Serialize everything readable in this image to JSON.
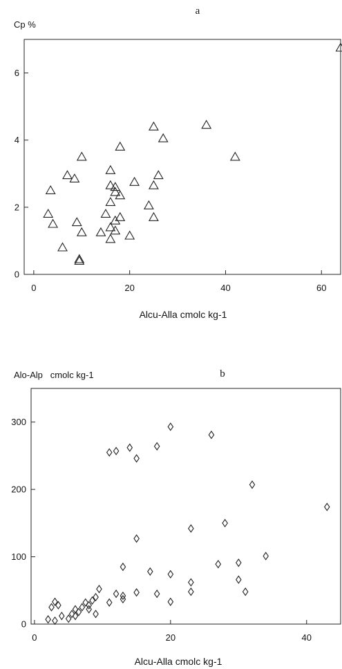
{
  "chart_data": [
    {
      "type": "scatter",
      "panel_label": "a",
      "ylabel": "Cp %",
      "xlabel": "Alcu-Alla cmolc kg-1",
      "xlim": [
        -2,
        64
      ],
      "ylim": [
        0,
        7
      ],
      "xticks": [
        0,
        20,
        40,
        60
      ],
      "yticks": [
        0,
        2,
        4,
        6
      ],
      "marker": "triangle",
      "grid": false,
      "x": [
        3,
        3.5,
        4,
        6,
        7,
        8.5,
        9,
        9.5,
        9.5,
        10,
        10,
        14,
        15,
        16,
        16,
        16,
        16,
        16,
        17,
        17,
        17,
        17,
        18,
        18,
        18,
        20,
        21,
        24,
        25,
        25,
        25,
        26,
        27,
        36,
        42,
        64
      ],
      "y": [
        1.8,
        2.5,
        1.5,
        0.8,
        2.95,
        2.85,
        1.55,
        0.4,
        0.45,
        1.25,
        3.5,
        1.25,
        1.8,
        3.1,
        2.65,
        2.15,
        1.4,
        1.05,
        2.45,
        1.6,
        1.3,
        2.6,
        2.35,
        1.7,
        3.8,
        1.15,
        2.75,
        2.05,
        2.65,
        1.7,
        4.4,
        2.95,
        4.05,
        4.45,
        3.5,
        6.75
      ]
    },
    {
      "type": "scatter",
      "panel_label": "b",
      "ylabel": "Alo-Alp   cmolc kg-1",
      "xlabel": "Alcu-Alla cmolc kg-1",
      "xlim": [
        -0.5,
        45
      ],
      "ylim": [
        0,
        350
      ],
      "xticks": [
        0,
        20,
        40
      ],
      "yticks": [
        0,
        100,
        200,
        300
      ],
      "marker": "diamond",
      "grid": false,
      "x": [
        2,
        2.5,
        3,
        3,
        3.5,
        4,
        5,
        5.5,
        6,
        6,
        6.5,
        7,
        7.5,
        8,
        8,
        8.5,
        9,
        9,
        9.5,
        11,
        11,
        12,
        12,
        13,
        13,
        13,
        14,
        15,
        15,
        15,
        17,
        18,
        18,
        20,
        20,
        20,
        23,
        23,
        23,
        26,
        27,
        28,
        30,
        30,
        31,
        32,
        34,
        43
      ],
      "y": [
        7,
        25,
        5,
        33,
        28,
        12,
        8,
        15,
        12,
        22,
        18,
        25,
        32,
        22,
        28,
        35,
        40,
        15,
        52,
        255,
        32,
        257,
        45,
        85,
        42,
        37,
        262,
        246,
        127,
        47,
        78,
        264,
        45,
        293,
        74,
        33,
        142,
        62,
        48,
        281,
        89,
        150,
        91,
        66,
        48,
        207,
        101,
        174
      ]
    }
  ]
}
